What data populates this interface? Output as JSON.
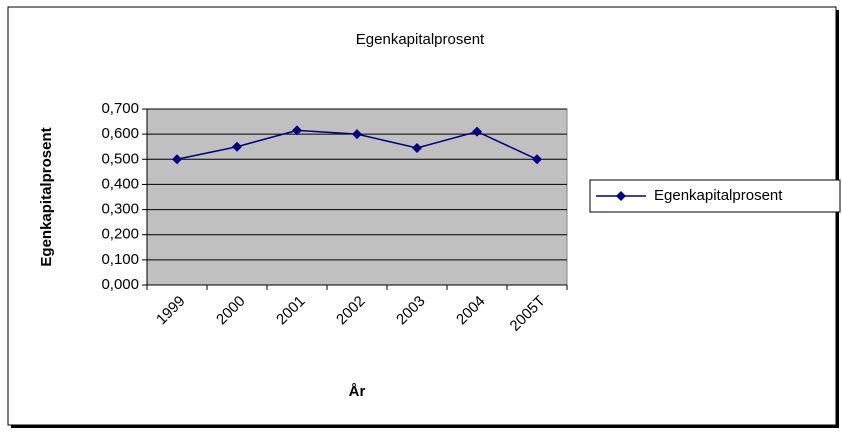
{
  "chart_data": {
    "type": "line",
    "title": "Egenkapitalprosent",
    "x_label": "År",
    "y_label": "Egenkapitalprosent",
    "categories": [
      "1999",
      "2000",
      "2001",
      "2002",
      "2003",
      "2004",
      "2005T"
    ],
    "series": [
      {
        "name": "Egenkapitalprosent",
        "color": "#000080",
        "values": [
          0.5,
          0.55,
          0.615,
          0.6,
          0.545,
          0.61,
          0.5
        ]
      }
    ],
    "ylim": [
      0,
      0.7
    ],
    "yticks": [
      {
        "value": 0,
        "label": "0,000"
      },
      {
        "value": 0.1,
        "label": "0,100"
      },
      {
        "value": 0.2,
        "label": "0,200"
      },
      {
        "value": 0.3,
        "label": "0,300"
      },
      {
        "value": 0.4,
        "label": "0,400"
      },
      {
        "value": 0.5,
        "label": "0,500"
      },
      {
        "value": 0.6,
        "label": "0,600"
      },
      {
        "value": 0.7,
        "label": "0,700"
      }
    ],
    "grid": true,
    "legend": "right"
  }
}
